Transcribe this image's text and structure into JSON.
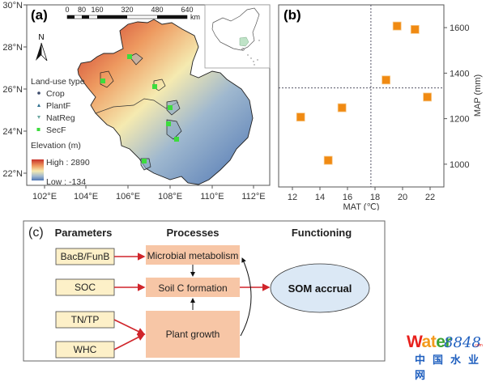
{
  "figure": {
    "panel_a": {
      "label": "(a)",
      "latitude_ticks": [
        "30°N",
        "28°N",
        "26°N",
        "24°N",
        "22°N"
      ],
      "longitude_ticks": [
        "102°E",
        "104°E",
        "106°E",
        "108°E",
        "110°E",
        "112°E"
      ],
      "scale_bar": {
        "ticks": [
          "0",
          "80",
          "160",
          "320",
          "480",
          "640"
        ],
        "unit": "km"
      },
      "north_arrow": "N",
      "legend": {
        "landuse_title": "Land-use type",
        "landuse_items": [
          {
            "label": "Crop",
            "symbol": "circle",
            "color": "#3b4a6b"
          },
          {
            "label": "PlantF",
            "symbol": "triangle-up",
            "color": "#2e6f8e"
          },
          {
            "label": "NatReg",
            "symbol": "triangle-down",
            "color": "#6aa6a0"
          },
          {
            "label": "SecF",
            "symbol": "square",
            "color": "#3ddc3d"
          }
        ],
        "elevation_title": "Elevation (m)",
        "elevation_high": "High : 2890",
        "elevation_low": "Low : -134",
        "gradient_colors": [
          "#c8312a",
          "#ee9a60",
          "#f5eab0",
          "#9fb8cf",
          "#4f76b3"
        ]
      },
      "inset": "China locator map (study area highlighted)"
    },
    "panel_b": {
      "label": "(b)"
    },
    "panel_c": {
      "label": "(c)",
      "headers": {
        "parameters": "Parameters",
        "processes": "Processes",
        "functioning": "Functioning"
      },
      "parameters": [
        "BacB/FunB",
        "SOC",
        "TN/TP",
        "WHC"
      ],
      "processes": [
        "Microbial metabolism",
        "Soil C formation",
        "Plant growth"
      ],
      "outcome": "SOM accrual",
      "colors": {
        "param_fill": "#fdf0c8",
        "process_fill": "#f7c6a6",
        "outcome_fill": "#dbe8f5",
        "arrow_red": "#d0252b",
        "arrow_black": "#111111"
      }
    }
  },
  "chart_data": {
    "type": "scatter",
    "title": "",
    "xlabel": "MAT (℃)",
    "ylabel": "MAP (mm)",
    "xlim": [
      11,
      23
    ],
    "ylim": [
      900,
      1700
    ],
    "x_ticks": [
      12,
      14,
      16,
      18,
      20,
      22
    ],
    "y_ticks": [
      1000,
      1200,
      1400,
      1600
    ],
    "y_axis_side": "right",
    "grid": false,
    "reference_lines": {
      "vertical_x": 17.7,
      "horizontal_y": 1335,
      "style": "dotted"
    },
    "marker": {
      "shape": "square",
      "color": "#f08a12"
    },
    "points": [
      {
        "x": 12.6,
        "y": 1207
      },
      {
        "x": 14.6,
        "y": 1017
      },
      {
        "x": 15.6,
        "y": 1248
      },
      {
        "x": 18.8,
        "y": 1370
      },
      {
        "x": 19.6,
        "y": 1607
      },
      {
        "x": 20.9,
        "y": 1592
      },
      {
        "x": 21.8,
        "y": 1295
      }
    ]
  },
  "watermark": {
    "w": "W",
    "at": "at",
    "er": "er",
    "num": "8848",
    "com": ".com",
    "cn": "中国水业网"
  }
}
